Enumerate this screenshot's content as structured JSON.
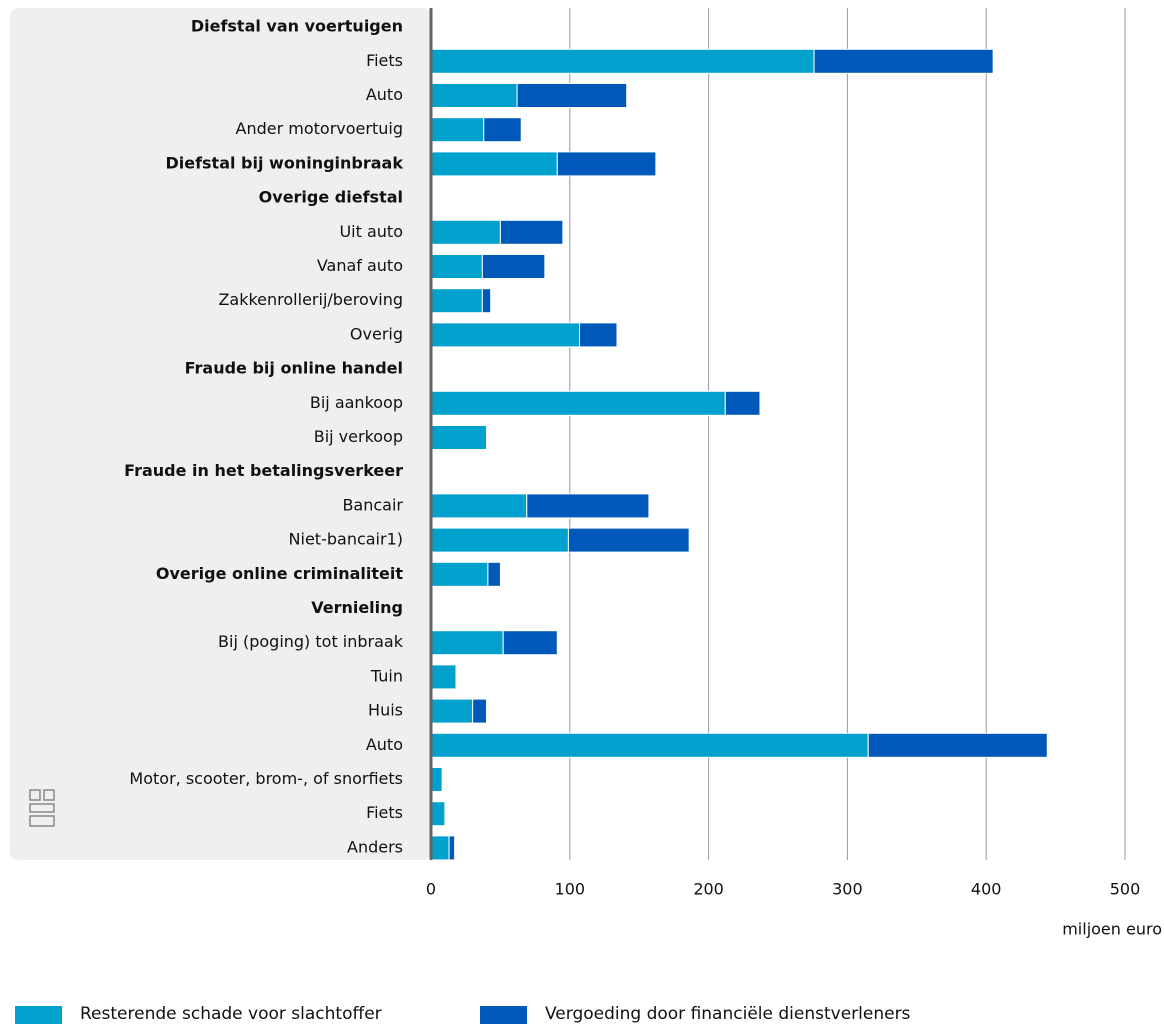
{
  "chart_data": {
    "type": "stacked-barh",
    "categories": [
      "Diefstal van voertuigen",
      "Fiets",
      "Auto",
      "Ander motorvoertuig",
      "Diefstal bij woninginbraak",
      "Overige diefstal",
      "Uit auto",
      "Vanaf auto",
      "Zakkenrollerij/beroving",
      "Overig",
      "Fraude bij online handel",
      "Bij aankoop",
      "Bij verkoop",
      "Fraude in het betalingsverkeer",
      "Bancair",
      "Niet-bancair1)",
      "Overige online criminaliteit",
      "Vernieling",
      "Bij (poging) tot inbraak",
      "Tuin",
      "Huis",
      "Auto",
      "Motor, scooter, brom-, of snorfiets",
      "Fiets",
      "Anders"
    ],
    "header_categories": [
      0,
      4,
      5,
      10,
      13,
      16,
      17
    ],
    "series": [
      {
        "name": "Resterende schade voor slachtoffer",
        "color": "#00a1cd",
        "values": [
          null,
          276,
          62,
          38,
          91,
          null,
          50,
          37,
          37,
          107,
          null,
          212,
          40,
          null,
          69,
          99,
          41,
          null,
          52,
          18,
          30,
          315,
          8,
          10,
          13
        ]
      },
      {
        "name": "Vergoeding door financiële dienstverleners",
        "color": "#0058b8",
        "values": [
          null,
          129,
          79,
          27,
          71,
          null,
          45,
          45,
          6,
          27,
          null,
          25,
          null,
          null,
          88,
          87,
          9,
          null,
          39,
          null,
          10,
          129,
          null,
          null,
          4
        ]
      }
    ],
    "xlabel": "miljoen euro",
    "xlim": [
      0,
      500
    ],
    "xticks": [
      0,
      100,
      200,
      300,
      400,
      500
    ],
    "grid": true,
    "legend": "bottom"
  }
}
